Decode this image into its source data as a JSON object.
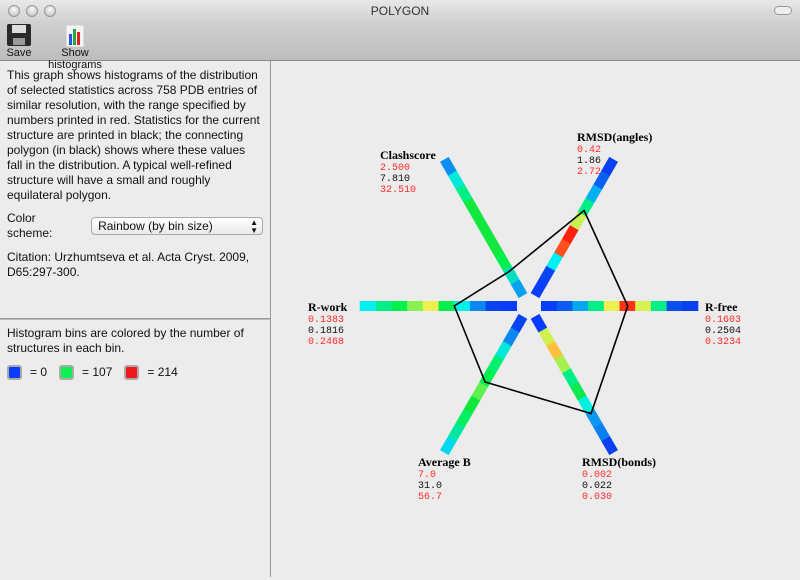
{
  "window": {
    "title": "POLYGON"
  },
  "toolbar": {
    "save_label": "Save",
    "histograms_label": "Show histograms"
  },
  "info": {
    "description": "This graph shows histograms of the distribution of selected statistics across 758 PDB entries of similar resolution, with the range specified by numbers printed in red.  Statistics for the current structure are printed in black; the connecting polygon (in black) shows where these values fall in the distribution. A typical well-refined structure will have a small and roughly equilateral polygon.",
    "color_scheme_label": "Color scheme:",
    "color_scheme_value": "Rainbow (by bin size)",
    "citation": "Citation: Urzhumtseva et al. Acta Cryst. 2009, D65:297-300."
  },
  "legend": {
    "text": "Histogram bins are colored by the number of structures in each bin.",
    "items": [
      {
        "color": "#0a3cff",
        "label": "= 0"
      },
      {
        "color": "#10f050",
        "label": "= 107"
      },
      {
        "color": "#f01818",
        "label": "= 214"
      }
    ]
  },
  "chart_data": {
    "type": "radar-histogram",
    "axes": [
      {
        "name": "R-free",
        "min": "0.1603",
        "value": "0.2504",
        "max": "0.3234",
        "bins": [
          "#0a3cff",
          "#0a5cf0",
          "#00a8f0",
          "#00ee88",
          "#eef050",
          "#ff3318",
          "#d8f050",
          "#00ee88",
          "#0a50f0",
          "#0a40f0"
        ]
      },
      {
        "name": "RMSD(angles)",
        "min": "0.42",
        "value": "1.86",
        "max": "2.72",
        "bins": [
          "#0a3cff",
          "#0a44f0",
          "#00f0f0",
          "#ff5020",
          "#ff2010",
          "#c8f050",
          "#00ee88",
          "#00b0f0",
          "#0a60f0",
          "#0a40f0"
        ]
      },
      {
        "name": "Clashscore",
        "min": "2.500",
        "value": "7.810",
        "max": "32.510",
        "bins": [
          "#0aa0f0",
          "#00e0c0",
          "#00f050",
          "#10e840",
          "#10e840",
          "#10e840",
          "#10e840",
          "#00ee88",
          "#00e8d8",
          "#0a90f0"
        ]
      },
      {
        "name": "R-work",
        "min": "0.1383",
        "value": "0.1816",
        "max": "0.2468",
        "bins": [
          "#0a3cff",
          "#0a44f0",
          "#0a88f0",
          "#00f0e8",
          "#00f050",
          "#eef050",
          "#88f050",
          "#00f050",
          "#00ee88",
          "#00f0f0"
        ]
      },
      {
        "name": "Average B",
        "min": "7.0",
        "value": "31.0",
        "max": "56.7",
        "bins": [
          "#0a44f0",
          "#0a88f0",
          "#00e8d8",
          "#00f070",
          "#00f050",
          "#60f050",
          "#10e840",
          "#00f060",
          "#00e8a0",
          "#00d8f0"
        ]
      },
      {
        "name": "RMSD(bonds)",
        "min": "0.002",
        "value": "0.022",
        "max": "0.030",
        "bins": [
          "#0a3cff",
          "#d0f050",
          "#ffc040",
          "#a8f050",
          "#00ee88",
          "#10e850",
          "#00f0e0",
          "#0a98f0",
          "#0a80f0",
          "#0a40f0"
        ]
      }
    ]
  }
}
